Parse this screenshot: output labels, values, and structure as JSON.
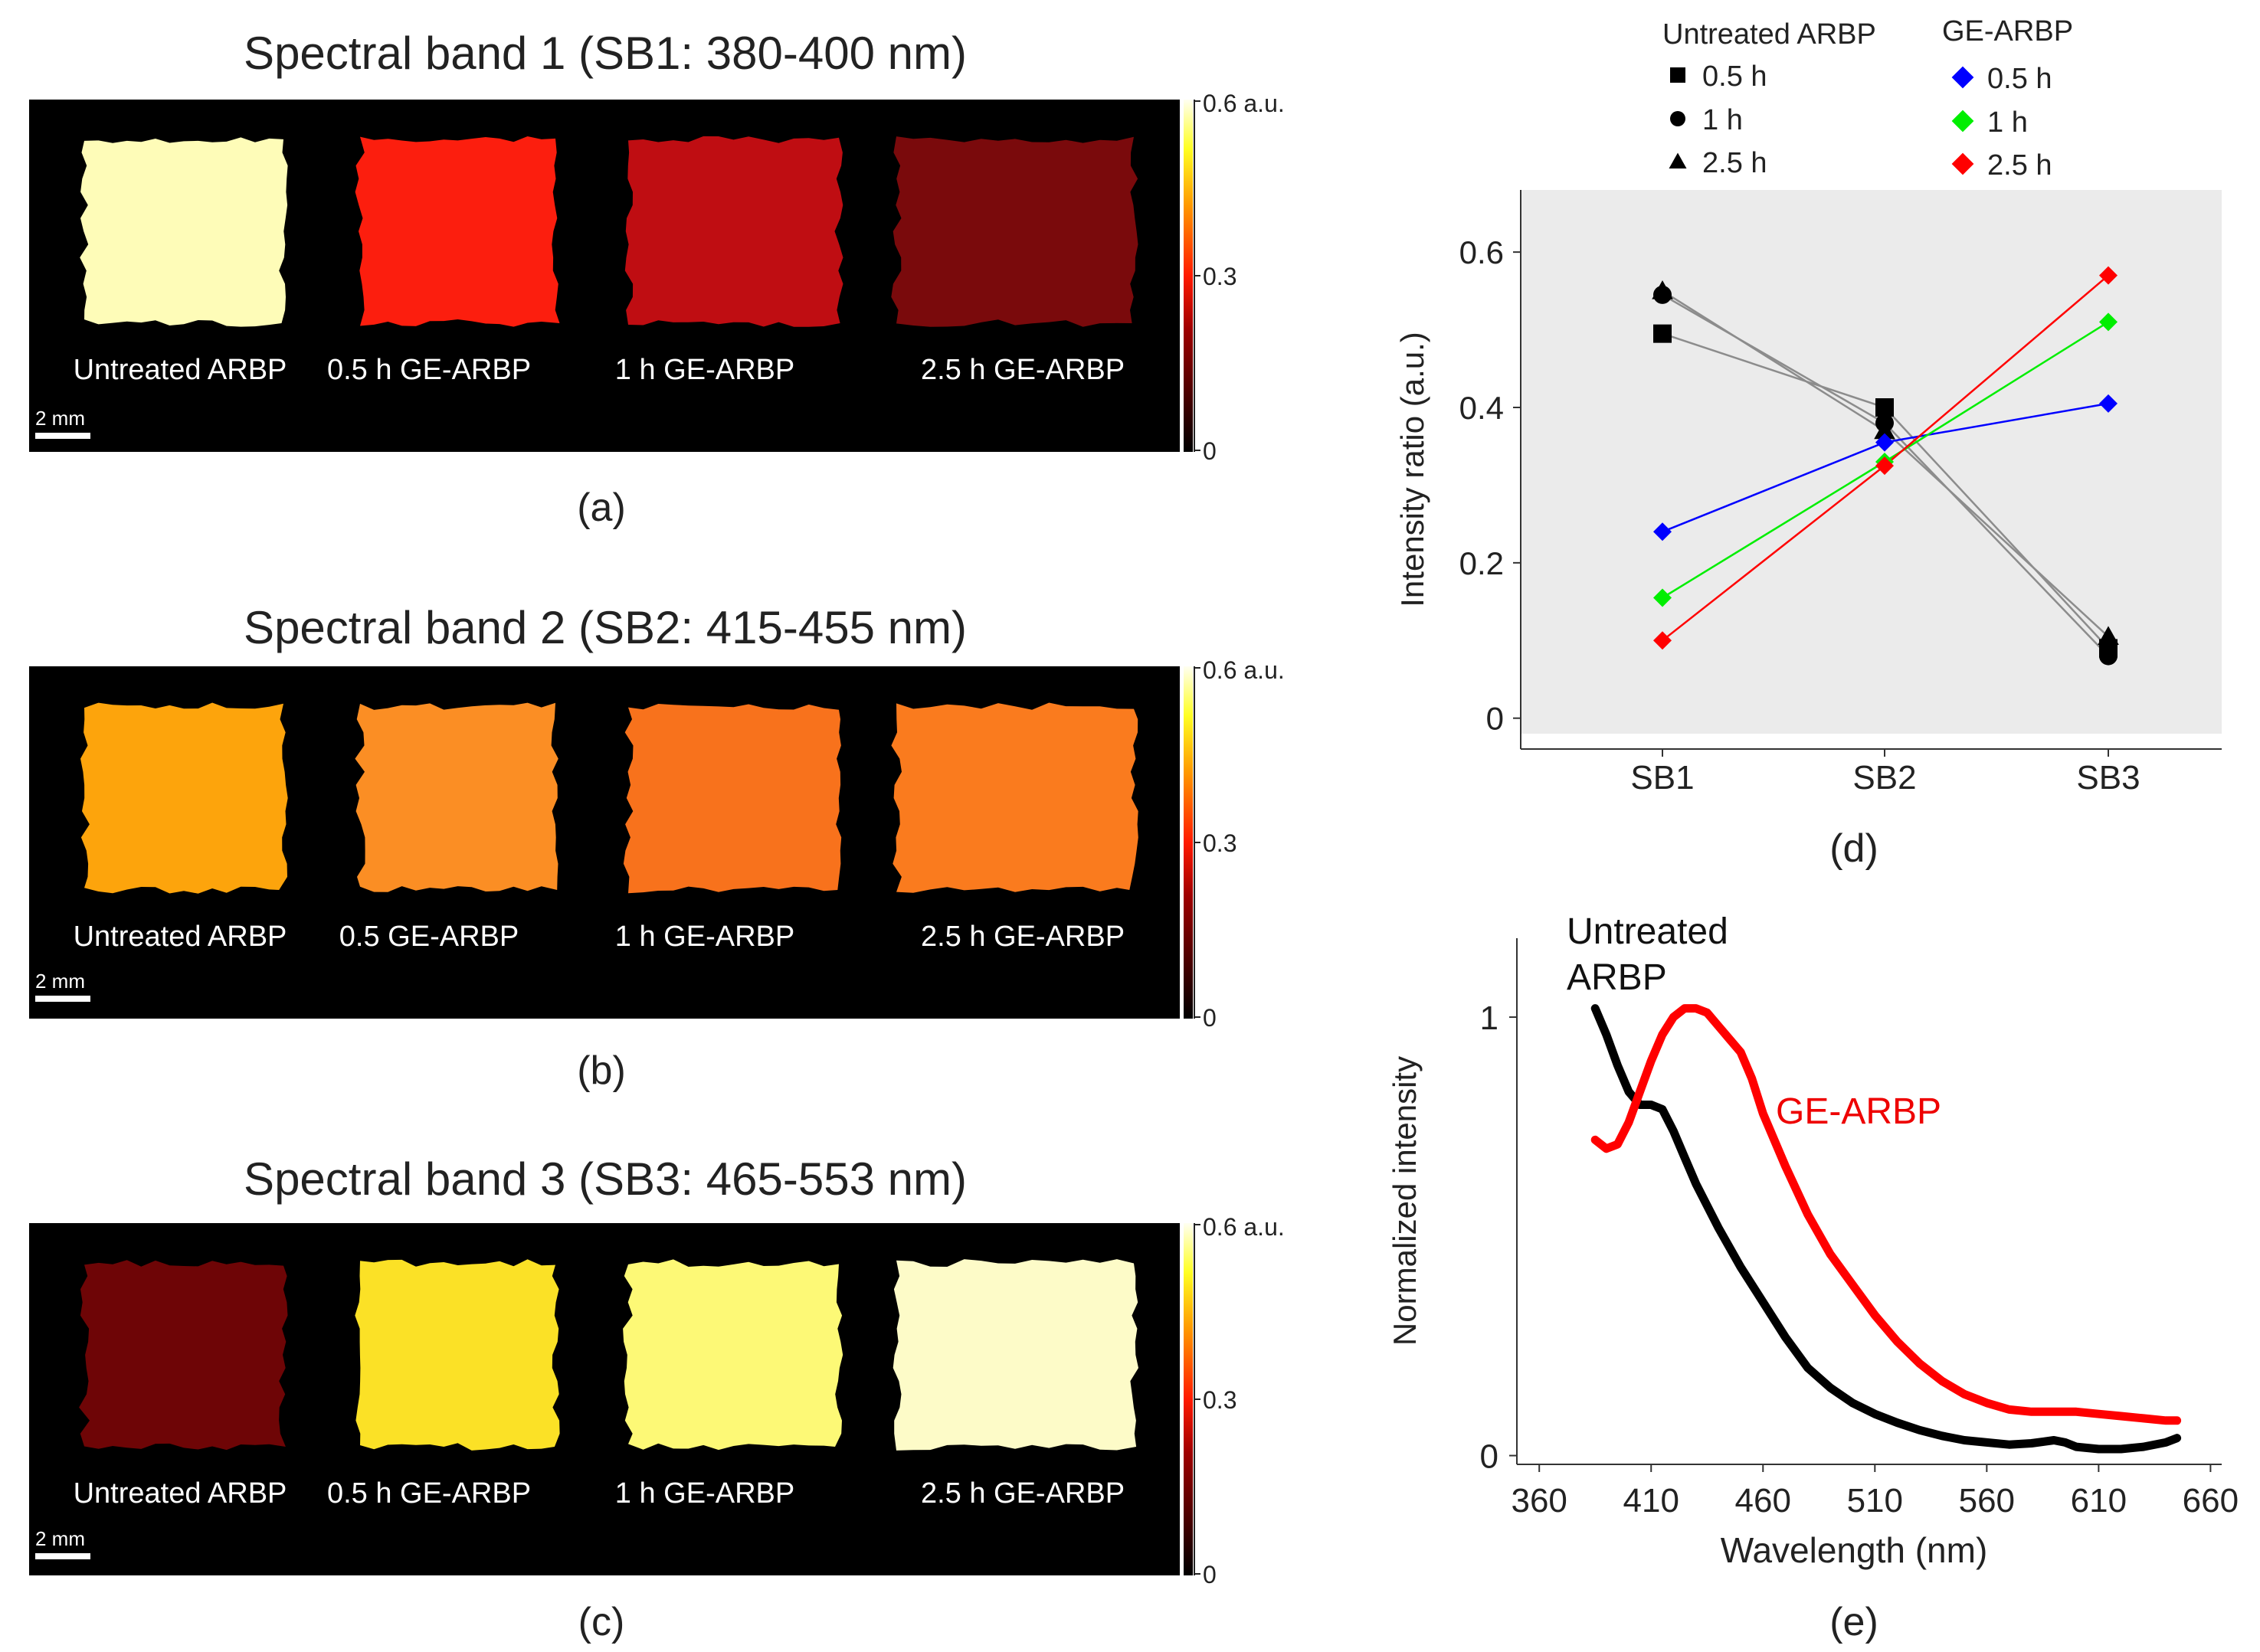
{
  "panels": [
    {
      "id": "a",
      "title": "Spectral band 1 (SB1: 380-400 nm)",
      "caption": "(a)",
      "colorbar": {
        "max_label": "0.6 a.u.",
        "mid_label": "0.3",
        "min_label": "0"
      },
      "scale_bar": "2 mm",
      "samples": [
        {
          "label": "Untreated ARBP",
          "value": 0.55,
          "color": "#fefcb8"
        },
        {
          "label": "0.5 h  GE-ARBP",
          "value": 0.24,
          "color": "#fc1e0e"
        },
        {
          "label": "1 h GE-ARBP",
          "value": 0.16,
          "color": "#bf0d12"
        },
        {
          "label": "2.5 h GE-ARBP",
          "value": 0.1,
          "color": "#7a0a0c"
        }
      ]
    },
    {
      "id": "b",
      "title": "Spectral band 2 (SB2: 415-455 nm)",
      "caption": "(b)",
      "colorbar": {
        "max_label": "0.6 a.u.",
        "mid_label": "0.3",
        "min_label": "0"
      },
      "scale_bar": "2 mm",
      "samples": [
        {
          "label": "Untreated ARBP",
          "value": 0.38,
          "color": "#fda40c"
        },
        {
          "label": "0.5  GE-ARBP",
          "value": 0.36,
          "color": "#fb8e24"
        },
        {
          "label": "1 h GE-ARBP",
          "value": 0.34,
          "color": "#f8721c"
        },
        {
          "label": "2.5 h GE-ARBP",
          "value": 0.35,
          "color": "#fa7b1e"
        }
      ]
    },
    {
      "id": "c",
      "title": "Spectral band 3 (SB3: 465-553 nm)",
      "caption": "(c)",
      "colorbar": {
        "max_label": "0.6 a.u.",
        "mid_label": "0.3",
        "min_label": "0"
      },
      "scale_bar": "2 mm",
      "samples": [
        {
          "label": "Untreated ARBP",
          "value": 0.09,
          "color": "#6e0506"
        },
        {
          "label": "0.5 h  GE-ARBP",
          "value": 0.41,
          "color": "#fbe126"
        },
        {
          "label": "1 h GE-ARBP",
          "value": 0.51,
          "color": "#fdf976"
        },
        {
          "label": "2.5 h GE-ARBP",
          "value": 0.57,
          "color": "#fdfbc8"
        }
      ]
    }
  ],
  "chart_data": [
    {
      "id": "d",
      "type": "line",
      "caption": "(d)",
      "title": "",
      "xlabel": "",
      "ylabel": "Intensity ratio (a.u.)",
      "categories": [
        "SB1",
        "SB2",
        "SB3"
      ],
      "ylim": [
        -0.02,
        0.68
      ],
      "yticks": [
        0,
        0.2,
        0.4,
        0.6
      ],
      "ytick_labels": [
        "0",
        "0.2",
        "0.4",
        "0.6"
      ],
      "grid": false,
      "background": "#ebebeb",
      "legend": {
        "placement": "top",
        "group1_title": "Untreated ARBP",
        "group2_title": "GE-ARBP",
        "items": [
          {
            "label": "0.5 h",
            "marker": "square",
            "color": "#000000"
          },
          {
            "label": "1 h",
            "marker": "circle",
            "color": "#000000"
          },
          {
            "label": "2.5 h",
            "marker": "triangle",
            "color": "#000000"
          },
          {
            "label": "0.5 h",
            "marker": "diamond",
            "color": "#0000ff"
          },
          {
            "label": "1 h",
            "marker": "diamond",
            "color": "#00ee00"
          },
          {
            "label": "2.5 h",
            "marker": "diamond",
            "color": "#ff0000"
          }
        ]
      },
      "series": [
        {
          "name": "Untreated ARBP 0.5 h",
          "marker": "square",
          "color": "#000000",
          "line_color": "#8c8c8c",
          "values": [
            0.495,
            0.4,
            0.09
          ]
        },
        {
          "name": "Untreated ARBP 1 h",
          "marker": "circle",
          "color": "#000000",
          "line_color": "#8c8c8c",
          "values": [
            0.545,
            0.38,
            0.08
          ]
        },
        {
          "name": "Untreated ARBP 2.5 h",
          "marker": "triangle",
          "color": "#000000",
          "line_color": "#8c8c8c",
          "values": [
            0.55,
            0.37,
            0.105
          ]
        },
        {
          "name": "GE-ARBP 0.5 h",
          "marker": "diamond",
          "color": "#0000ff",
          "line_color": "#0000ff",
          "values": [
            0.24,
            0.355,
            0.405
          ]
        },
        {
          "name": "GE-ARBP 1 h",
          "marker": "diamond",
          "color": "#00ee00",
          "line_color": "#00ee00",
          "values": [
            0.155,
            0.33,
            0.51
          ]
        },
        {
          "name": "GE-ARBP 2.5 h",
          "marker": "diamond",
          "color": "#ff0000",
          "line_color": "#ff0000",
          "values": [
            0.1,
            0.325,
            0.57
          ]
        }
      ]
    },
    {
      "id": "e",
      "type": "line",
      "caption": "(e)",
      "title": "",
      "xlabel": "Wavelength (nm)",
      "ylabel": "Normalized intensity",
      "xlim": [
        350,
        665
      ],
      "ylim": [
        -0.02,
        1.18
      ],
      "xticks": [
        360,
        410,
        460,
        510,
        560,
        610,
        660
      ],
      "yticks": [
        0,
        1
      ],
      "ytick_labels": [
        "0",
        "1"
      ],
      "grid": false,
      "annotations": [
        "Untreated",
        "ARBP",
        "GE-ARBP"
      ],
      "series": [
        {
          "name": "Untreated ARBP",
          "color": "#000000",
          "x": [
            385,
            390,
            395,
            400,
            405,
            410,
            415,
            420,
            425,
            430,
            440,
            450,
            460,
            470,
            480,
            490,
            500,
            510,
            520,
            530,
            540,
            550,
            560,
            570,
            580,
            590,
            595,
            600,
            610,
            620,
            630,
            640,
            645
          ],
          "y": [
            1.02,
            0.96,
            0.89,
            0.83,
            0.8,
            0.8,
            0.79,
            0.74,
            0.68,
            0.62,
            0.52,
            0.43,
            0.35,
            0.27,
            0.2,
            0.155,
            0.12,
            0.095,
            0.075,
            0.058,
            0.045,
            0.035,
            0.03,
            0.025,
            0.028,
            0.035,
            0.03,
            0.02,
            0.015,
            0.015,
            0.02,
            0.03,
            0.04
          ]
        },
        {
          "name": "GE-ARBP",
          "color": "#ff0000",
          "x": [
            385,
            390,
            395,
            400,
            405,
            410,
            415,
            420,
            425,
            430,
            435,
            440,
            445,
            450,
            455,
            460,
            470,
            480,
            490,
            500,
            510,
            520,
            530,
            540,
            550,
            560,
            570,
            580,
            590,
            600,
            610,
            620,
            630,
            640,
            645
          ],
          "y": [
            0.72,
            0.7,
            0.71,
            0.76,
            0.83,
            0.9,
            0.96,
            1.0,
            1.02,
            1.02,
            1.01,
            0.98,
            0.95,
            0.92,
            0.86,
            0.78,
            0.66,
            0.55,
            0.46,
            0.39,
            0.32,
            0.26,
            0.21,
            0.17,
            0.14,
            0.12,
            0.105,
            0.1,
            0.1,
            0.1,
            0.095,
            0.09,
            0.085,
            0.08,
            0.08
          ]
        }
      ]
    }
  ]
}
